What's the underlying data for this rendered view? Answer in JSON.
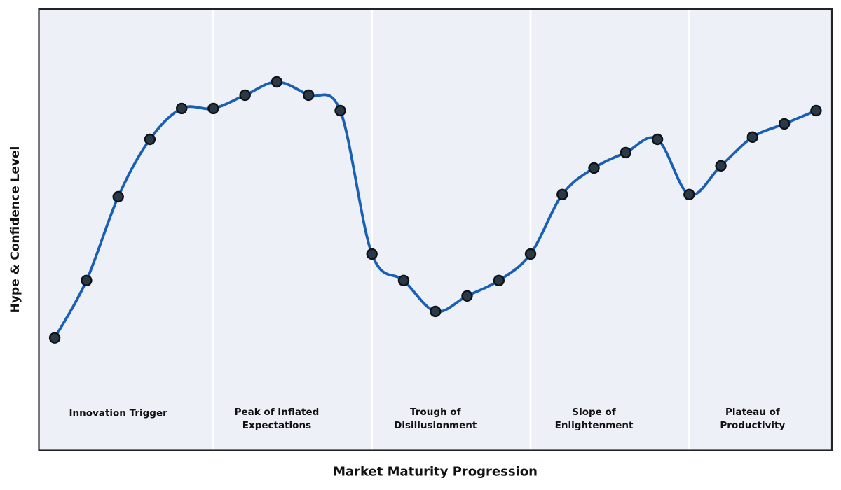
{
  "figure": {
    "background": "#ffffff",
    "plot_background": "#edf1f7",
    "spine_color": "#222326",
    "divider_color": "#ffffff",
    "text_color": "#111111"
  },
  "chart_data": {
    "type": "line",
    "title": "",
    "xlabel": "Market Maturity Progression",
    "ylabel": "Hype & Confidence Level",
    "x": [
      0,
      1,
      2,
      3,
      4,
      5,
      6,
      7,
      8,
      9,
      10,
      11,
      12,
      13,
      14,
      15,
      16,
      17,
      18,
      19,
      20,
      21,
      22,
      23,
      24
    ],
    "series": [
      {
        "name": "Hype & Confidence",
        "values": [
          25.5,
          38.5,
          57.5,
          70.5,
          77.5,
          77.5,
          80.5,
          83.5,
          80.5,
          77,
          44.5,
          38.5,
          31.5,
          35,
          38.5,
          44.5,
          58,
          64,
          67.5,
          70.5,
          58,
          64.5,
          71,
          74,
          77
        ]
      }
    ],
    "xlim": [
      -0.5,
      24.5
    ],
    "ylim": [
      0,
      100
    ],
    "grid": false,
    "ticks": false,
    "legend": false,
    "line_color": "#1a5fb4",
    "marker_fill": "#2b3947",
    "marker_edge": "#0d1319",
    "phase_dividers_x": [
      5,
      10,
      15,
      20
    ],
    "phases": [
      {
        "label": "Innovation Trigger",
        "lines": [
          "Innovation Trigger"
        ],
        "x_center": 2
      },
      {
        "label": "Peak of Inflated Expectations",
        "lines": [
          "Peak of Inflated",
          "Expectations"
        ],
        "x_center": 7
      },
      {
        "label": "Trough of Disillusionment",
        "lines": [
          "Trough of",
          "Disillusionment"
        ],
        "x_center": 12
      },
      {
        "label": "Slope of Enlightenment",
        "lines": [
          "Slope of",
          "Enlightenment"
        ],
        "x_center": 17
      },
      {
        "label": "Plateau of Productivity",
        "lines": [
          "Plateau of",
          "Productivity"
        ],
        "x_center": 22
      }
    ]
  }
}
